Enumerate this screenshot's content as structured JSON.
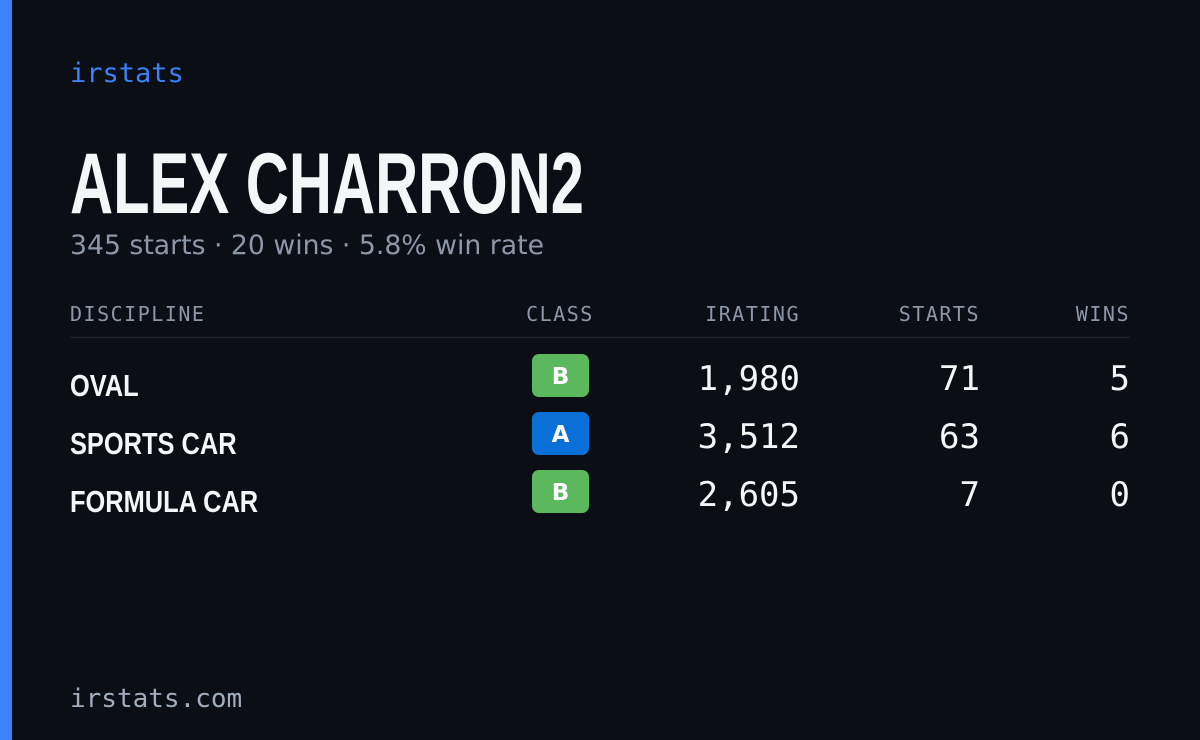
{
  "header": {
    "brand": "irstats",
    "name": "ALEX CHARRON2",
    "summary": "345 starts · 20 wins · 5.8% win rate"
  },
  "table": {
    "columns": [
      "DISCIPLINE",
      "CLASS",
      "IRATING",
      "STARTS",
      "WINS"
    ],
    "rows": [
      {
        "discipline": "OVAL",
        "class": "B",
        "class_color": "#5cb85c",
        "irating": "1,980",
        "starts": "71",
        "wins": "5"
      },
      {
        "discipline": "SPORTS CAR",
        "class": "A",
        "class_color": "#0b6fd8",
        "irating": "3,512",
        "starts": "63",
        "wins": "6"
      },
      {
        "discipline": "FORMULA CAR",
        "class": "B",
        "class_color": "#5cb85c",
        "irating": "2,605",
        "starts": "7",
        "wins": "0"
      }
    ]
  },
  "footer": {
    "site": "irstats.com"
  }
}
